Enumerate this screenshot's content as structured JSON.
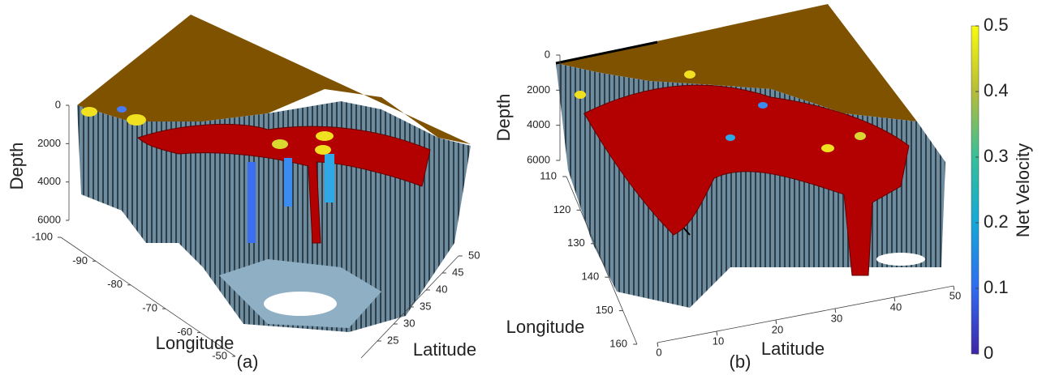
{
  "chart_data": [
    {
      "type": "surface3d",
      "label": "(a)",
      "xlabel": "Longitude",
      "ylabel": "Latitude",
      "zlabel": "Depth",
      "xlim": [
        -100,
        -50
      ],
      "xticks": [
        -100,
        -90,
        -80,
        -70,
        -60,
        -50
      ],
      "ylim": [
        20,
        50
      ],
      "yticks": [
        25,
        30,
        35,
        40,
        45,
        50
      ],
      "zlim": [
        0,
        6000
      ],
      "zticks": [
        0,
        2000,
        4000,
        6000
      ]
    },
    {
      "type": "surface3d",
      "label": "(b)",
      "xlabel": "Longitude",
      "ylabel": "Latitude",
      "zlabel": "Depth",
      "xlim": [
        110,
        160
      ],
      "xticks": [
        110,
        120,
        130,
        140,
        150,
        160
      ],
      "ylim": [
        0,
        50
      ],
      "yticks": [
        0,
        10,
        20,
        30,
        40,
        50
      ],
      "zlim": [
        0,
        6000
      ],
      "zticks": [
        0,
        2000,
        4000,
        6000
      ],
      "colorbar": {
        "label": "Net Velocity",
        "lim": [
          0,
          0.5
        ],
        "ticks": [
          0,
          0.1,
          0.2,
          0.3,
          0.4,
          0.5
        ]
      }
    }
  ]
}
